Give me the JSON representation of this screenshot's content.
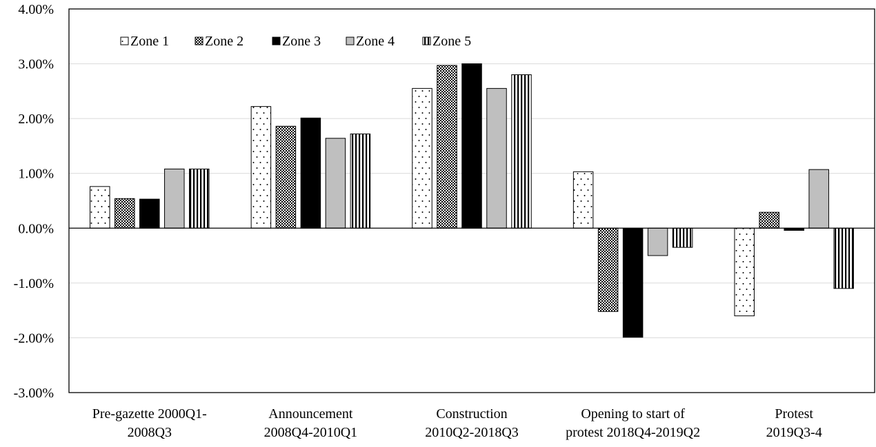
{
  "chart_data": {
    "type": "bar",
    "title": "",
    "xlabel": "",
    "ylabel": "",
    "ylim": [
      -3,
      4
    ],
    "yticks": [
      4,
      3,
      2,
      1,
      0,
      -1,
      -2,
      -3
    ],
    "ytick_labels": [
      "4.00%",
      "3.00%",
      "2.00%",
      "1.00%",
      "0.00%",
      "-1.00%",
      "-2.00%",
      "-3.00%"
    ],
    "grid": true,
    "legend_position": "top-left",
    "categories": [
      [
        "Pre-gazette 2000Q1-",
        "2008Q3"
      ],
      [
        "Announcement",
        "2008Q4-2010Q1"
      ],
      [
        "Construction",
        "2010Q2-2018Q3"
      ],
      [
        "Opening to start of",
        "protest 2018Q4-2019Q2"
      ],
      [
        "Protest",
        "2019Q3-4"
      ]
    ],
    "series": [
      {
        "name": "Zone 1",
        "pattern": "dots",
        "values": [
          0.76,
          2.22,
          2.55,
          1.03,
          -1.6
        ]
      },
      {
        "name": "Zone 2",
        "pattern": "checker",
        "values": [
          0.54,
          1.86,
          2.97,
          -1.52,
          0.29
        ]
      },
      {
        "name": "Zone 3",
        "pattern": "solid-black",
        "values": [
          0.53,
          2.01,
          3.0,
          -1.99,
          -0.04
        ]
      },
      {
        "name": "Zone 4",
        "pattern": "solid-gray",
        "values": [
          1.08,
          1.64,
          2.55,
          -0.5,
          1.07
        ]
      },
      {
        "name": "Zone 5",
        "pattern": "vstripes",
        "values": [
          1.08,
          1.72,
          2.8,
          -0.35,
          -1.1
        ]
      }
    ]
  }
}
